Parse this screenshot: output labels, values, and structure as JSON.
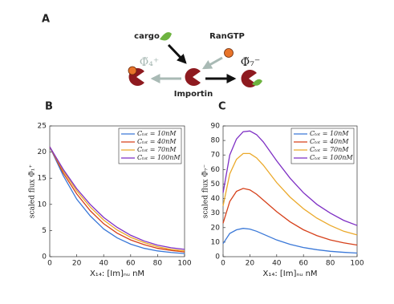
{
  "diagram": {
    "panel": "A",
    "cargo": "cargo",
    "rangtp": "RanGTP",
    "importin": "Importin",
    "flux_out": "Φ̃₄⁺",
    "flux_in": "Φ̃₇⁻"
  },
  "chart_data": [
    {
      "type": "line",
      "label": "B",
      "xlabel": "X₁₄: [Im]ₙᵤ nM",
      "ylabel": "scaled flux Φ̃₁⁺",
      "x": [
        0,
        10,
        20,
        30,
        40,
        50,
        60,
        70,
        80,
        90,
        100
      ],
      "xlim": [
        0,
        100
      ],
      "xticks": [
        0,
        20,
        40,
        60,
        80,
        100
      ],
      "ylim": [
        0,
        25
      ],
      "yticks": [
        0,
        5,
        10,
        15,
        20,
        25
      ],
      "legend": "top-right",
      "series": [
        {
          "name": "Cₜₒₜ = 10nM",
          "color": "#3a78d8",
          "values": [
            21,
            15.5,
            11,
            7.8,
            5.3,
            3.6,
            2.4,
            1.6,
            1.1,
            0.8,
            0.6
          ]
        },
        {
          "name": "Cₜₒₜ = 40nM",
          "color": "#d6401a",
          "values": [
            21,
            16,
            12,
            8.8,
            6.3,
            4.5,
            3.2,
            2.3,
            1.6,
            1.2,
            0.9
          ]
        },
        {
          "name": "Cₜₒₜ = 70nM",
          "color": "#eba92a",
          "values": [
            21,
            16.4,
            12.6,
            9.5,
            7.0,
            5.1,
            3.7,
            2.7,
            1.9,
            1.4,
            1.1
          ]
        },
        {
          "name": "Cₜₒₜ = 100nM",
          "color": "#7e2fc4",
          "values": [
            21,
            16.7,
            13,
            10,
            7.5,
            5.6,
            4.1,
            3.0,
            2.2,
            1.7,
            1.4
          ]
        }
      ]
    },
    {
      "type": "line",
      "label": "C",
      "xlabel": "X₁₄: [Im]ₙᵤ nM",
      "ylabel": "scaled flux Φ̃₇⁻",
      "x": [
        0,
        5,
        10,
        15,
        20,
        25,
        30,
        40,
        50,
        60,
        70,
        80,
        90,
        100
      ],
      "xlim": [
        0,
        100
      ],
      "xticks": [
        0,
        20,
        40,
        60,
        80,
        100
      ],
      "ylim": [
        0,
        90
      ],
      "yticks": [
        0,
        10,
        20,
        30,
        40,
        50,
        60,
        70,
        80,
        90
      ],
      "legend": "top-right",
      "series": [
        {
          "name": "Cₜₒₜ = 10nM",
          "color": "#3a78d8",
          "values": [
            9,
            16,
            18.5,
            19.5,
            19,
            17.5,
            15.5,
            11.5,
            8.5,
            6.3,
            4.8,
            3.7,
            3,
            2.5
          ]
        },
        {
          "name": "Cₜₒₜ = 40nM",
          "color": "#d6401a",
          "values": [
            23,
            38,
            45,
            47,
            46,
            43,
            39,
            31,
            24,
            18.5,
            14.5,
            11.5,
            9.5,
            8
          ]
        },
        {
          "name": "Cₜₒₜ = 70nM",
          "color": "#eba92a",
          "values": [
            35,
            57,
            67,
            71,
            71,
            68,
            63,
            51,
            41,
            33,
            26.5,
            21.5,
            17.5,
            15
          ]
        },
        {
          "name": "Cₜₒₜ = 100nM",
          "color": "#7e2fc4",
          "values": [
            44,
            70,
            81,
            86,
            86.5,
            84,
            79,
            66,
            54,
            44,
            36,
            30,
            25,
            21.5
          ]
        }
      ]
    }
  ]
}
